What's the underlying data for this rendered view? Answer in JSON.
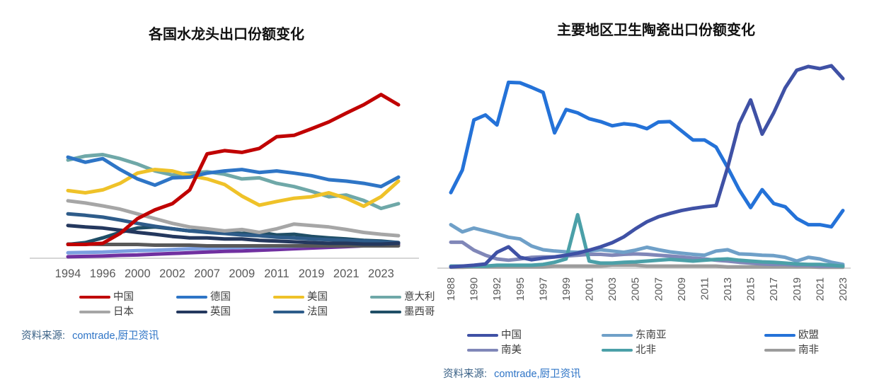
{
  "chart_data": [
    {
      "type": "line",
      "title": "各国水龙头出口份额变化",
      "xlabel": "",
      "ylabel": "",
      "ylim": [
        0,
        50
      ],
      "grid": false,
      "legend_position": "bottom",
      "legend_columns": 4,
      "x_tick_labels": [
        "1994",
        "1996",
        "2000",
        "2002",
        "2007",
        "2009",
        "2011",
        "2019",
        "2021",
        "2023"
      ],
      "tick_every": 2,
      "tick_rotated": false,
      "axis_color": "#d6d6d6",
      "tick_color": "#595959",
      "draw_order": [
        10,
        9,
        8,
        7,
        6,
        5,
        4,
        3,
        2,
        1,
        0
      ],
      "series": [
        {
          "name": "中国",
          "color": "#c00000",
          "values": [
            3.8,
            3.8,
            4.1,
            6.8,
            10.9,
            13.3,
            15.0,
            18.8,
            28.7,
            29.6,
            29.1,
            30.2,
            33.4,
            33.8,
            35.6,
            37.5,
            39.9,
            42.2,
            45.0,
            42.2
          ]
        },
        {
          "name": "德国",
          "color": "#2e75c6",
          "values": [
            27.8,
            26.4,
            27.4,
            24.4,
            21.8,
            20.1,
            22.1,
            22.3,
            23.4,
            24.0,
            24.4,
            23.6,
            24.0,
            23.4,
            22.7,
            21.6,
            21.2,
            20.6,
            19.7,
            22.3
          ]
        },
        {
          "name": "美国",
          "color": "#efc229",
          "values": [
            18.6,
            18.0,
            18.8,
            20.6,
            23.4,
            24.4,
            24.0,
            22.7,
            21.8,
            20.3,
            17.1,
            14.6,
            15.6,
            16.5,
            16.9,
            18.0,
            16.5,
            14.3,
            16.9,
            21.2
          ]
        },
        {
          "name": "意大利",
          "color": "#6fa8a8",
          "values": [
            27.0,
            28.1,
            28.5,
            27.4,
            25.9,
            24.0,
            22.9,
            23.4,
            23.8,
            23.1,
            21.8,
            22.1,
            20.6,
            19.7,
            18.4,
            16.9,
            17.4,
            15.9,
            13.7,
            15.0
          ]
        },
        {
          "name": "日本",
          "color": "#a6a6a6",
          "values": [
            15.8,
            15.2,
            14.4,
            13.5,
            12.2,
            10.9,
            9.6,
            8.6,
            8.1,
            7.5,
            7.9,
            7.1,
            8.1,
            9.4,
            9.0,
            8.6,
            7.9,
            7.1,
            6.6,
            6.2
          ]
        },
        {
          "name": "英国",
          "color": "#24385e",
          "values": [
            9.0,
            8.6,
            8.3,
            7.7,
            7.1,
            6.6,
            6.0,
            5.6,
            5.6,
            5.3,
            5.3,
            4.9,
            4.7,
            4.5,
            4.3,
            4.1,
            4.1,
            3.9,
            3.9,
            4.1
          ]
        },
        {
          "name": "法国",
          "color": "#2e5c8a",
          "values": [
            12.2,
            11.8,
            11.3,
            10.5,
            9.6,
            8.8,
            8.1,
            7.5,
            7.1,
            6.8,
            6.4,
            6.2,
            5.8,
            5.6,
            5.3,
            5.1,
            4.9,
            4.7,
            4.5,
            4.3
          ]
        },
        {
          "name": "墨西哥",
          "color": "#1f4e66",
          "values": [
            3.8,
            4.3,
            5.6,
            7.1,
            8.3,
            8.6,
            8.1,
            7.5,
            7.7,
            7.1,
            6.8,
            7.1,
            6.4,
            6.6,
            6.0,
            5.6,
            5.3,
            4.9,
            4.7,
            4.3
          ]
        },
        {
          "name": "unlabeled-dark-gray",
          "in_legend": false,
          "color": "#595959",
          "values": [
            3.9,
            3.9,
            3.8,
            3.8,
            3.8,
            3.6,
            3.6,
            3.6,
            3.4,
            3.4,
            3.4,
            3.4,
            3.4,
            3.4,
            3.4,
            3.4,
            3.4,
            3.4,
            3.4,
            3.4
          ]
        },
        {
          "name": "unlabeled-light-blue",
          "in_legend": false,
          "color": "#7c9fe0",
          "values": [
            1.5,
            1.6,
            1.7,
            1.9,
            2.1,
            2.2,
            2.4,
            2.6,
            2.7,
            2.9,
            3.0,
            3.1,
            3.2,
            3.3,
            3.4,
            3.6,
            3.7,
            3.8,
            4.0,
            4.1
          ]
        },
        {
          "name": "unlabeled-purple",
          "in_legend": false,
          "color": "#7030a0",
          "values": [
            0.4,
            0.5,
            0.6,
            0.8,
            0.9,
            1.1,
            1.3,
            1.5,
            1.7,
            1.9,
            2.0,
            2.2,
            2.4,
            2.6,
            2.8,
            3.0,
            3.2,
            3.4,
            3.6,
            3.8
          ]
        }
      ],
      "source_label": "资料来源:",
      "source_value": "comtrade,厨卫资讯"
    },
    {
      "type": "line",
      "title": "主要地区卫生陶瓷出口份额变化",
      "xlabel": "",
      "ylabel": "",
      "ylim": [
        0,
        50
      ],
      "grid": false,
      "legend_position": "bottom",
      "legend_columns": 3,
      "x_tick_labels": [
        "1988",
        "1990",
        "1992",
        "1995",
        "1997",
        "1999",
        "2001",
        "2003",
        "2005",
        "2007",
        "2009",
        "2011",
        "2013",
        "2015",
        "2017",
        "2019",
        "2021",
        "2023"
      ],
      "tick_every": 2,
      "tick_rotated": true,
      "axis_color": "#d6d6d6",
      "tick_color": "#595959",
      "draw_order": [
        5,
        3,
        1,
        4,
        2,
        0
      ],
      "series": [
        {
          "name": "中国",
          "color": "#3f51a5",
          "values": [
            0.3,
            0.5,
            0.7,
            1.0,
            3.8,
            5.1,
            2.6,
            2.0,
            2.4,
            2.7,
            3.1,
            3.6,
            4.3,
            5.1,
            6.1,
            7.5,
            9.4,
            11.1,
            12.3,
            13.1,
            13.8,
            14.3,
            14.7,
            15.0,
            24.1,
            34.6,
            40.3,
            32.1,
            37.2,
            43.2,
            47.4,
            48.3,
            47.8,
            48.5,
            45.4
          ]
        },
        {
          "name": "东南亚",
          "color": "#6fa0c8",
          "values": [
            10.4,
            8.7,
            9.6,
            8.9,
            8.2,
            7.4,
            7.0,
            5.3,
            4.4,
            4.1,
            3.9,
            3.8,
            4.1,
            4.4,
            4.1,
            3.8,
            4.3,
            5.0,
            4.4,
            3.9,
            3.6,
            3.3,
            3.1,
            4.1,
            4.4,
            3.4,
            3.3,
            3.1,
            3.0,
            2.6,
            1.7,
            2.6,
            2.2,
            1.4,
            0.9
          ]
        },
        {
          "name": "欧盟",
          "color": "#2472d8",
          "values": [
            18.1,
            23.5,
            35.5,
            36.7,
            34.3,
            44.5,
            44.4,
            43.3,
            42.1,
            32.4,
            38.0,
            37.2,
            35.8,
            35.1,
            34.1,
            34.6,
            34.3,
            33.4,
            35.0,
            35.1,
            32.9,
            30.7,
            30.7,
            29.0,
            24.1,
            18.8,
            14.5,
            18.8,
            15.5,
            14.7,
            11.9,
            10.4,
            10.4,
            9.9,
            13.8
          ]
        },
        {
          "name": "南美",
          "color": "#8087b8",
          "values": [
            6.2,
            6.2,
            4.3,
            3.1,
            2.2,
            1.9,
            2.2,
            2.6,
            2.7,
            2.7,
            2.9,
            3.1,
            3.3,
            3.3,
            3.1,
            3.3,
            3.4,
            3.3,
            3.1,
            2.9,
            2.7,
            2.4,
            2.2,
            1.9,
            1.7,
            1.4,
            1.2,
            1.0,
            0.9,
            0.9,
            0.7,
            0.7,
            0.5,
            0.5,
            0.5
          ]
        },
        {
          "name": "北非",
          "color": "#4ba0a8",
          "values": [
            0.5,
            0.5,
            0.5,
            0.5,
            0.7,
            0.7,
            0.7,
            0.7,
            0.9,
            1.4,
            2.2,
            12.8,
            1.7,
            1.2,
            1.2,
            1.4,
            1.5,
            1.7,
            1.9,
            2.1,
            1.9,
            1.7,
            1.9,
            2.1,
            2.2,
            1.9,
            1.7,
            1.5,
            1.4,
            1.2,
            1.0,
            0.9,
            0.9,
            0.7,
            0.5
          ]
        },
        {
          "name": "南非",
          "color": "#9c9c9c",
          "values": [
            0.2,
            0.2,
            0.3,
            0.3,
            0.3,
            0.3,
            0.3,
            0.3,
            0.3,
            0.5,
            0.5,
            0.5,
            0.5,
            0.5,
            0.7,
            0.7,
            0.7,
            0.5,
            0.5,
            0.5,
            0.5,
            0.5,
            0.5,
            0.5,
            0.3,
            0.3,
            0.3,
            0.3,
            0.3,
            0.3,
            0.3,
            0.3,
            0.2,
            0.2,
            0.2
          ]
        }
      ],
      "source_label": "资料来源:",
      "source_value": "comtrade,厨卫资讯"
    }
  ]
}
